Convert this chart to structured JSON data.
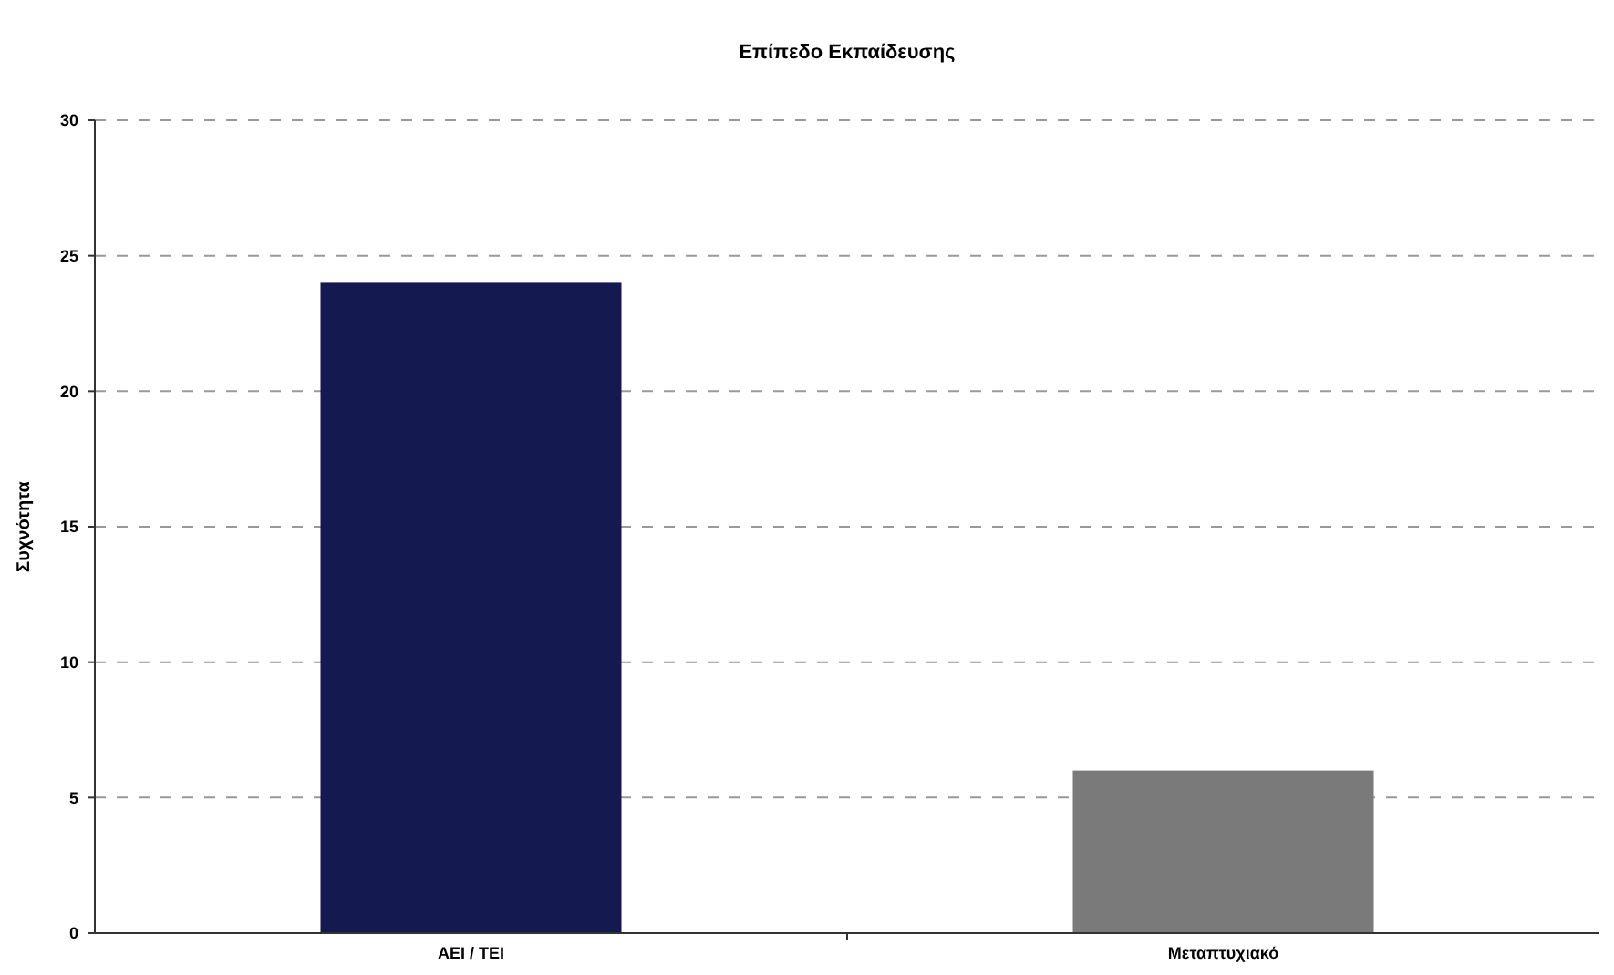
{
  "chart_data": {
    "type": "bar",
    "title": "Επίπεδο Εκπαίδευσης",
    "ylabel": "Συχνότητα",
    "categories": [
      "ΑΕΙ / ΤΕΙ",
      "Μεταπτυχιακό"
    ],
    "values": [
      24,
      6
    ],
    "colors": [
      "#14194f",
      "#7a7a7a"
    ],
    "ylim": [
      0,
      30
    ],
    "yticks": [
      0,
      5,
      10,
      15,
      20,
      25,
      30
    ],
    "grid": "y"
  }
}
